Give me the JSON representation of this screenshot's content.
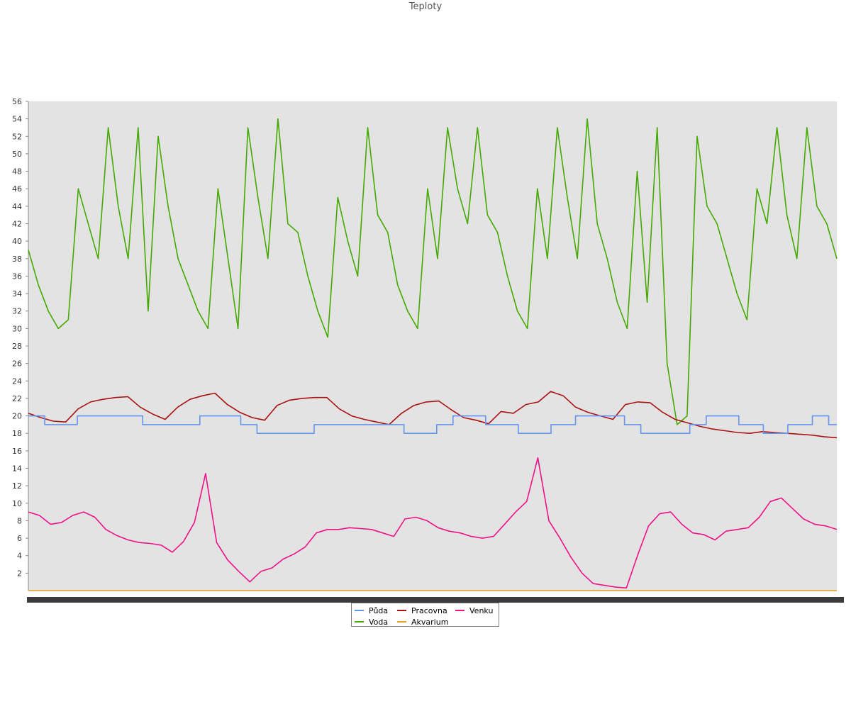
{
  "chart_data": {
    "type": "line",
    "title": "Teploty",
    "xlabel": "",
    "ylabel": "",
    "ylim": [
      0,
      56
    ],
    "yticks": [
      2,
      4,
      6,
      8,
      10,
      12,
      14,
      16,
      18,
      20,
      22,
      24,
      26,
      28,
      30,
      32,
      34,
      36,
      38,
      40,
      42,
      44,
      46,
      48,
      50,
      52,
      54,
      56
    ],
    "x_count": 100,
    "grid": false,
    "legend_position": "bottom",
    "series": [
      {
        "name": "Půda",
        "color": "#6495ed",
        "values": [
          20,
          20,
          19,
          19,
          19,
          19,
          20,
          20,
          20,
          20,
          20,
          20,
          20,
          20,
          19,
          19,
          19,
          19,
          19,
          19,
          19,
          20,
          20,
          20,
          20,
          20,
          19,
          19,
          18,
          18,
          18,
          18,
          18,
          18,
          18,
          19,
          19,
          19,
          19,
          19,
          19,
          19,
          19,
          19,
          19,
          19,
          18,
          18,
          18,
          18,
          19,
          19,
          20,
          20,
          20,
          20,
          19,
          19,
          19,
          19,
          18,
          18,
          18,
          18,
          19,
          19,
          19,
          20,
          20,
          20,
          20,
          20,
          20,
          19,
          19,
          18,
          18,
          18,
          18,
          18,
          18,
          19,
          19,
          20,
          20,
          20,
          20,
          19,
          19,
          19,
          18,
          18,
          18,
          19,
          19,
          19,
          20,
          20,
          19,
          19
        ]
      },
      {
        "name": "Voda",
        "color": "#44aa00",
        "values": [
          39,
          35,
          32,
          30,
          31,
          46,
          42,
          38,
          53,
          44,
          38,
          53,
          32,
          52,
          44,
          38,
          35,
          32,
          30,
          46,
          38,
          30,
          53,
          45,
          38,
          54,
          42,
          41,
          36,
          32,
          29,
          45,
          40,
          36,
          53,
          43,
          41,
          35,
          32,
          30,
          46,
          38,
          53,
          46,
          42,
          53,
          43,
          41,
          36,
          32,
          30,
          46,
          38,
          53,
          45,
          38,
          54,
          42,
          38,
          33,
          30,
          48,
          33,
          53,
          26,
          19,
          20,
          52,
          44,
          42,
          38,
          34,
          31,
          46,
          42,
          53,
          43,
          38,
          53,
          44,
          42,
          38
        ]
      },
      {
        "name": "Pracovna",
        "color": "#aa1111",
        "values": [
          20.3,
          19.8,
          19.4,
          19.3,
          20.8,
          21.6,
          21.9,
          22.1,
          22.2,
          21.0,
          20.2,
          19.6,
          21.0,
          21.9,
          22.3,
          22.6,
          21.3,
          20.4,
          19.8,
          19.5,
          21.2,
          21.8,
          22.0,
          22.1,
          22.1,
          20.8,
          20.0,
          19.6,
          19.3,
          19.0,
          20.3,
          21.2,
          21.6,
          21.7,
          20.7,
          19.8,
          19.5,
          19.1,
          20.5,
          20.3,
          21.3,
          21.6,
          22.8,
          22.3,
          21.0,
          20.4,
          20.0,
          19.6,
          21.3,
          21.6,
          21.5,
          20.4,
          19.6,
          19.2,
          18.8,
          18.5,
          18.3,
          18.1,
          18.0,
          18.2,
          18.1,
          18.0,
          17.9,
          17.8,
          17.6,
          17.5
        ]
      },
      {
        "name": "Akvarium",
        "color": "#e0a020",
        "values": [
          0,
          0,
          0,
          0,
          0,
          0,
          0,
          0,
          0,
          0,
          0,
          0,
          0,
          0,
          0,
          0,
          0,
          0,
          0,
          0
        ]
      },
      {
        "name": "Venku",
        "color": "#ee1188",
        "values": [
          9.0,
          8.6,
          7.6,
          7.8,
          8.6,
          9.0,
          8.4,
          7.0,
          6.3,
          5.8,
          5.5,
          5.4,
          5.2,
          4.4,
          5.6,
          7.8,
          13.4,
          5.5,
          3.5,
          2.2,
          1.0,
          2.2,
          2.6,
          3.6,
          4.2,
          5.0,
          6.6,
          7.0,
          7.0,
          7.2,
          7.1,
          7.0,
          6.6,
          6.2,
          8.2,
          8.4,
          8.0,
          7.2,
          6.8,
          6.6,
          6.2,
          6.0,
          6.2,
          7.6,
          9.0,
          10.2,
          15.2,
          8.0,
          6.0,
          3.8,
          2.0,
          0.8,
          0.6,
          0.4,
          0.3,
          4.0,
          7.4,
          8.8,
          9.0,
          7.6,
          6.6,
          6.4,
          5.8,
          6.8,
          7.0,
          7.2,
          8.4,
          10.2,
          10.6,
          9.4,
          8.2,
          7.6,
          7.4,
          7.0
        ]
      }
    ]
  }
}
